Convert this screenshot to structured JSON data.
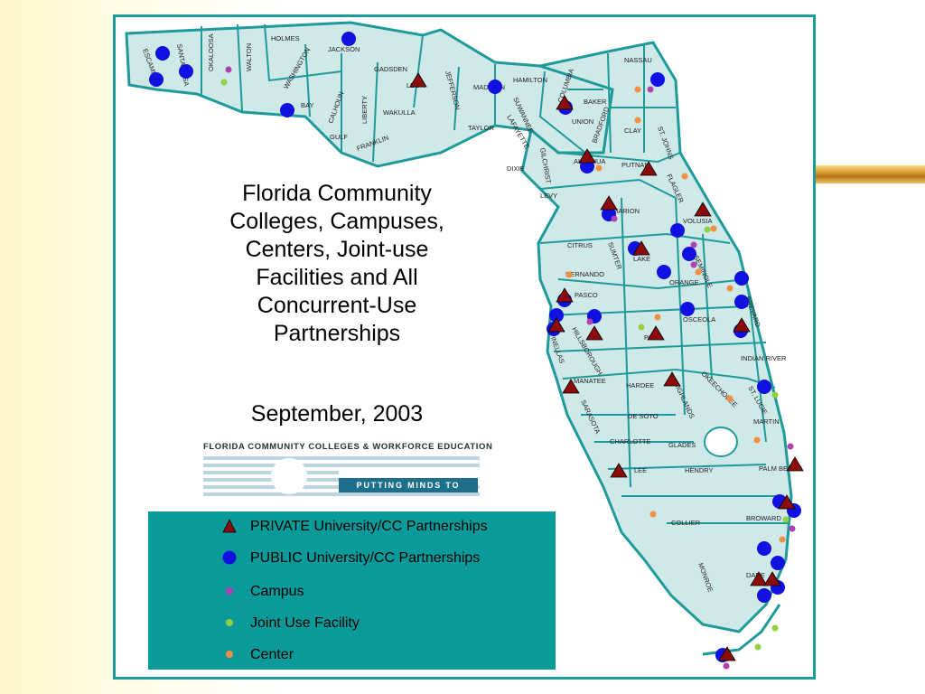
{
  "title": "Florida Community Colleges, Campuses, Centers, Joint-use Facilities and All Concurrent-Use Partnerships",
  "title_lines": [
    "Florida Community",
    "Colleges, Campuses,",
    "Centers, Joint-use",
    "Facilities and All",
    "Concurrent-Use",
    "Partnerships"
  ],
  "subtitle": "September, 2003",
  "logo": {
    "name": "FLORIDA COMMUNITY COLLEGES & WORKFORCE EDUCATION",
    "slogan": "PUTTING MINDS TO WORK"
  },
  "legend": [
    {
      "label": "PRIVATE University/CC Partnerships",
      "icon": "red-triangle-icon",
      "color": "#8b0a0a"
    },
    {
      "label": "PUBLIC University/CC Partnerships",
      "icon": "blue-circle-icon",
      "color": "#1010e0"
    },
    {
      "label": "Campus",
      "icon": "purple-dot-icon",
      "color": "#b040b0"
    },
    {
      "label": "Joint Use Facility",
      "icon": "green-dot-icon",
      "color": "#90d040"
    },
    {
      "label": "Center",
      "icon": "orange-dot-icon",
      "color": "#f09040"
    }
  ],
  "counties": [
    "ESCAMBIA",
    "SANTA ROSA",
    "OKALOOSA",
    "WALTON",
    "HOLMES",
    "WASHINGTON",
    "JACKSON",
    "BAY",
    "CALHOUN",
    "LIBERTY",
    "GULF",
    "FRANKLIN",
    "GADSDEN",
    "LEON",
    "WAKULLA",
    "JEFFERSON",
    "MADISON",
    "HAMILTON",
    "TAYLOR",
    "SUWANNEE",
    "LAFAYETTE",
    "COLUMBIA",
    "BAKER",
    "NASSAU",
    "UNION",
    "BRADFORD",
    "CLAY",
    "ST. JOHNS",
    "ALACHUA",
    "GILCHRIST",
    "DIXIE",
    "LEVY",
    "PUTNAM",
    "FLAGLER",
    "MARION",
    "VOLUSIA",
    "CITRUS",
    "SUMTER",
    "LAKE",
    "SEMINOLE",
    "HERNANDO",
    "ORANGE",
    "BREVARD",
    "PASCO",
    "OSCEOLA",
    "PINELLAS",
    "HILLSBOROUGH",
    "POLK",
    "INDIAN RIVER",
    "MANATEE",
    "HARDEE",
    "HIGHLANDS",
    "OKEECHOBEE",
    "ST. LUCIE",
    "SARASOTA",
    "DE SOTO",
    "MARTIN",
    "CHARLOTTE",
    "GLADES",
    "PALM BEACH",
    "LEE",
    "HENDRY",
    "BROWARD",
    "COLLIER",
    "MONROE",
    "DADE"
  ],
  "colors": {
    "map_fill": "#cfe8e8",
    "map_border": "#1f9a9a",
    "legend_bg": "#0b9a9a",
    "accent_gold": "#d9a040"
  }
}
